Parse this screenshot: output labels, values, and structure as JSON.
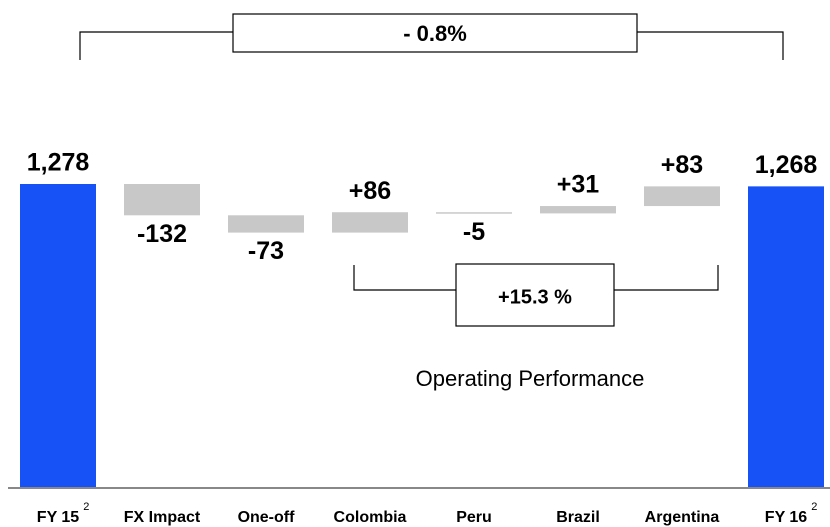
{
  "chart_data": {
    "type": "waterfall",
    "categories": [
      "FY 15",
      "FX Impact",
      "One-off",
      "Colombia",
      "Peru",
      "Brazil",
      "Argentina",
      "FY 16"
    ],
    "category_superscripts": [
      "2",
      null,
      null,
      null,
      null,
      null,
      null,
      "2"
    ],
    "measure": [
      "total",
      "relative",
      "relative",
      "relative",
      "relative",
      "relative",
      "relative",
      "total"
    ],
    "values": [
      1278,
      -132,
      -73,
      86,
      -5,
      31,
      83,
      1268
    ],
    "value_labels": [
      "1,278",
      "-132",
      "-73",
      "+86",
      "-5",
      "+31",
      "+83",
      "1,268"
    ],
    "colors": {
      "total": "#1652f5",
      "relative": "#c8c8c8"
    },
    "annotations": {
      "total_change": "- 0.8%",
      "operating_change": "+15.3 %",
      "operating_label": "Operating Performance"
    }
  }
}
